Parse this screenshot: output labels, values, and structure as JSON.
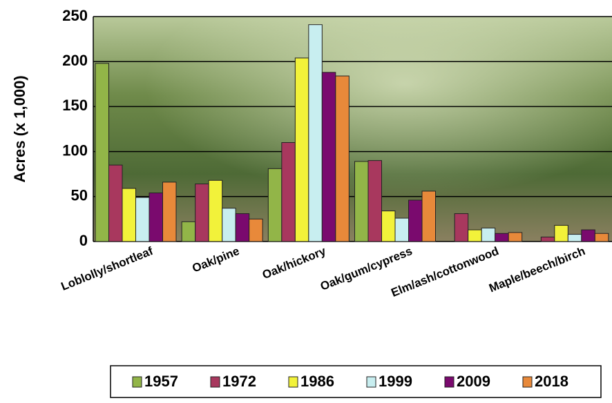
{
  "chart_data": {
    "type": "bar",
    "y_label": "Acres (x 1,000)",
    "categories": [
      "Loblolly/shortleaf",
      "Oak/pine",
      "Oak/hickory",
      "Oak/gum/cypress",
      "Elm/ash/cottonwood",
      "Maple/beech/birch"
    ],
    "series": [
      {
        "name": "1957",
        "color": "#92b548",
        "values": [
          198,
          22,
          81,
          89,
          0,
          0
        ]
      },
      {
        "name": "1972",
        "color": "#a8385e",
        "values": [
          85,
          64,
          110,
          90,
          31,
          5
        ]
      },
      {
        "name": "1986",
        "color": "#f2f23a",
        "values": [
          59,
          68,
          204,
          34,
          13,
          18
        ]
      },
      {
        "name": "1999",
        "color": "#c8eef0",
        "values": [
          49,
          37,
          241,
          26,
          15,
          8
        ]
      },
      {
        "name": "2009",
        "color": "#7a0a6e",
        "values": [
          54,
          31,
          188,
          46,
          9,
          13
        ]
      },
      {
        "name": "2018",
        "color": "#e8893a",
        "values": [
          66,
          25,
          184,
          56,
          10,
          9
        ]
      }
    ],
    "ylim": [
      0,
      250
    ],
    "yticks": [
      0,
      50,
      100,
      150,
      200,
      250
    ],
    "grid": true
  }
}
